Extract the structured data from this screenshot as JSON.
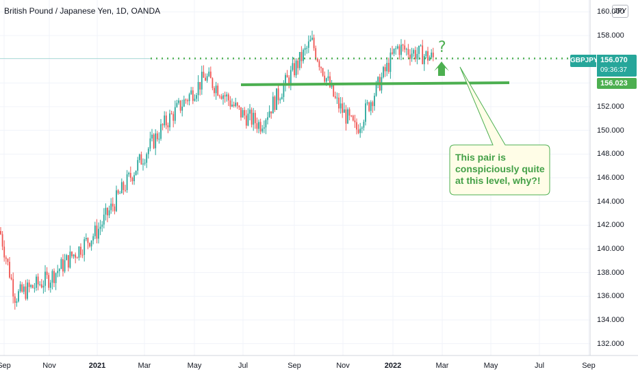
{
  "header": {
    "title": "British Pound / Japanese Yen, 1D, OANDA",
    "currency_badge": "JPY"
  },
  "price_scale": {
    "symbol": "GBPJPY",
    "last_price": "156.070",
    "countdown": "09:36:37",
    "line_price": "156.023",
    "ticks": [
      "132.000",
      "134.000",
      "136.000",
      "138.000",
      "140.000",
      "142.000",
      "144.000",
      "146.000",
      "148.000",
      "150.000",
      "152.000",
      "154.000",
      "156.000",
      "158.000",
      "160.000"
    ]
  },
  "annotation": {
    "text": "This pair is conspiciously quite at this level, why?!",
    "question_mark": "?"
  },
  "colors": {
    "up": "#26a69a",
    "down": "#ef5350",
    "annotation_green": "#4caf50",
    "callout_fill": "#fffde7",
    "callout_border": "#4caf50"
  },
  "chart_data": {
    "type": "candlestick",
    "x_axis_labels": [
      "Sep",
      "Nov",
      "2021",
      "Mar",
      "May",
      "Jul",
      "Sep",
      "Nov",
      "2022",
      "Mar",
      "May",
      "Jul",
      "Sep"
    ],
    "ylim": [
      131,
      161
    ],
    "series": [
      {
        "date": "2020-09",
        "close": 141.5
      },
      {
        "date": "2020-10",
        "close": 136.0
      },
      {
        "date": "2020-11",
        "close": 137.5
      },
      {
        "date": "2021-01",
        "close": 141.5
      },
      {
        "date": "2021-02",
        "close": 147.0
      },
      {
        "date": "2021-03",
        "close": 150.5
      },
      {
        "date": "2021-05",
        "close": 154.5
      },
      {
        "date": "2021-06",
        "close": 153.5
      },
      {
        "date": "2021-07",
        "close": 151.5
      },
      {
        "date": "2021-08",
        "close": 150.5
      },
      {
        "date": "2021-10",
        "close": 157.5
      },
      {
        "date": "2021-11",
        "close": 152.5
      },
      {
        "date": "2021-12",
        "close": 150.0
      },
      {
        "date": "2022-01",
        "close": 157.0
      },
      {
        "date": "2022-02",
        "close": 156.07
      }
    ],
    "horizontal_lines": [
      {
        "style": "dotted",
        "value": 156.07
      },
      {
        "style": "solid",
        "value": 155.0
      }
    ]
  }
}
